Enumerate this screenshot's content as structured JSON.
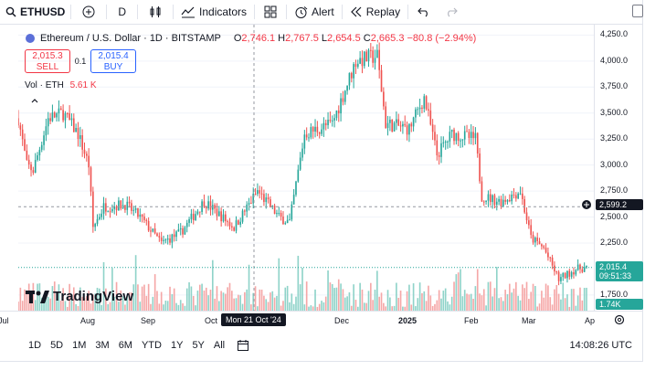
{
  "toolbar": {
    "symbol": "ETHUSD",
    "interval": "D",
    "indicators_label": "Indicators",
    "alert_label": "Alert",
    "replay_label": "Replay"
  },
  "legend": {
    "title": "Ethereum / U.S. Dollar · 1D · BITSTAMP",
    "open_label": "O",
    "open": "2,746.1",
    "high_label": "H",
    "high": "2,767.5",
    "low_label": "L",
    "low": "2,654.5",
    "close_label": "C",
    "close": "2,665.3",
    "change": "−80.8 (−2.94%)"
  },
  "trade": {
    "sell_price": "2,015.3",
    "sell_label": "SELL",
    "spread": "0.1",
    "buy_price": "2,015.4",
    "buy_label": "BUY"
  },
  "volume": {
    "label": "Vol · ETH",
    "value": "5.61 K",
    "badge": "1.74K"
  },
  "logo_text": "TradingView",
  "price_scale": {
    "ticks": [
      "4,250.0",
      "4,000.0",
      "3,750.0",
      "3,500.0",
      "3,250.0",
      "3,000.0",
      "2,750.0",
      "2,500.0",
      "2,250.0",
      "1,750.0"
    ],
    "crosshair_price": "2,599.2",
    "last_price": "2,015.4",
    "countdown": "09:51:33"
  },
  "time_scale": {
    "ticks": [
      "Jul",
      "Aug",
      "Sep",
      "Oct",
      "Dec",
      "2025",
      "Feb",
      "Mar",
      "Ap"
    ],
    "crosshair_date": "Mon 21 Oct '24"
  },
  "bottom": {
    "ranges": [
      "1D",
      "5D",
      "1M",
      "3M",
      "6M",
      "YTD",
      "1Y",
      "5Y",
      "All"
    ],
    "clock": "14:08:26 UTC"
  },
  "colors": {
    "up": "#26a69a",
    "down": "#ef5350",
    "up_vol": "#8fd3c9",
    "down_vol": "#f5a7a7",
    "accent": "#2962ff"
  },
  "chart_data": {
    "type": "candlestick",
    "x_start": "2024-07-01",
    "x_end": "2025-03-24",
    "ylim": [
      1600,
      4350
    ],
    "last_price": 2015.4,
    "crosshair_price": 2599.2,
    "anchors": [
      [
        "2024-07-01",
        3450
      ],
      [
        "2024-07-05",
        3000
      ],
      [
        "2024-07-08",
        2950
      ],
      [
        "2024-07-15",
        3450
      ],
      [
        "2024-07-22",
        3500
      ],
      [
        "2024-07-29",
        3300
      ],
      [
        "2024-08-03",
        3000
      ],
      [
        "2024-08-05",
        2400
      ],
      [
        "2024-08-10",
        2600
      ],
      [
        "2024-08-20",
        2620
      ],
      [
        "2024-08-27",
        2500
      ],
      [
        "2024-09-06",
        2250
      ],
      [
        "2024-09-15",
        2350
      ],
      [
        "2024-09-26",
        2650
      ],
      [
        "2024-10-10",
        2400
      ],
      [
        "2024-10-21",
        2750
      ],
      [
        "2024-10-31",
        2500
      ],
      [
        "2024-11-05",
        2450
      ],
      [
        "2024-11-12",
        3300
      ],
      [
        "2024-11-25",
        3400
      ],
      [
        "2024-12-06",
        4000
      ],
      [
        "2024-12-16",
        4050
      ],
      [
        "2024-12-20",
        3400
      ],
      [
        "2024-12-31",
        3350
      ],
      [
        "2025-01-07",
        3650
      ],
      [
        "2025-01-13",
        3100
      ],
      [
        "2025-01-20",
        3300
      ],
      [
        "2025-01-31",
        3250
      ],
      [
        "2025-02-03",
        2700
      ],
      [
        "2025-02-12",
        2650
      ],
      [
        "2025-02-21",
        2750
      ],
      [
        "2025-02-26",
        2300
      ],
      [
        "2025-03-04",
        2200
      ],
      [
        "2025-03-11",
        1900
      ],
      [
        "2025-03-19",
        2000
      ],
      [
        "2025-03-24",
        2015
      ]
    ]
  }
}
